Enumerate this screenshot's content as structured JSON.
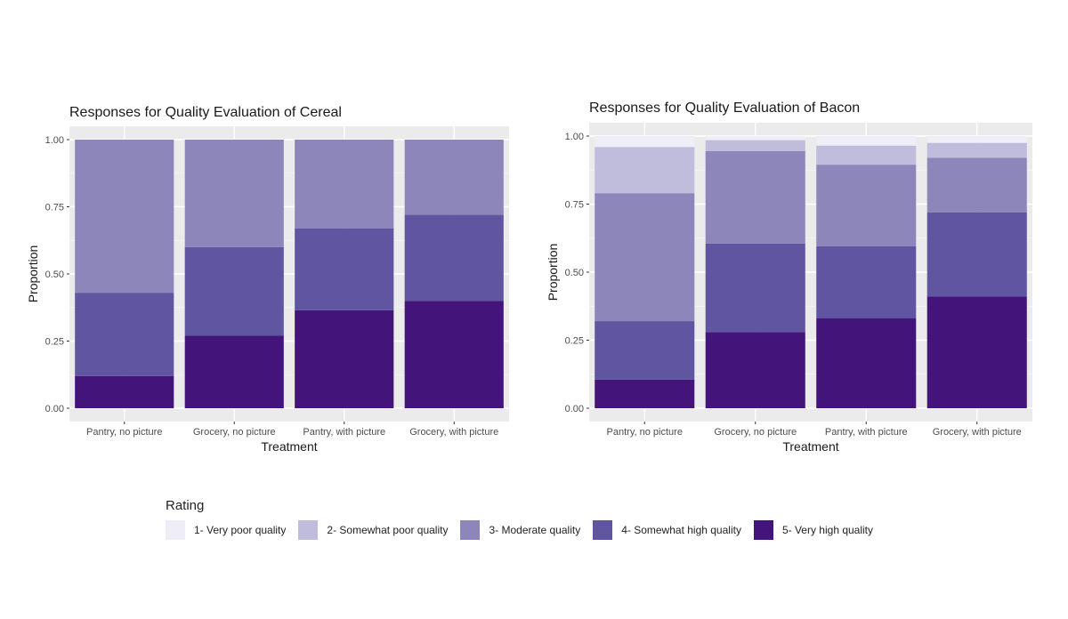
{
  "legend": {
    "title": "Rating",
    "items": [
      {
        "label": "1- Very poor quality",
        "color": "#efedf5"
      },
      {
        "label": "2- Somewhat poor quality",
        "color": "#bfbcdc"
      },
      {
        "label": "3- Moderate quality",
        "color": "#8c86bb"
      },
      {
        "label": "4- Somewhat high quality",
        "color": "#6055a0"
      },
      {
        "label": "5- Very high quality",
        "color": "#43157a"
      }
    ]
  },
  "chart_data": [
    {
      "type": "bar",
      "stacked": true,
      "title": "Responses for Quality Evaluation of Cereal",
      "xlabel": "Treatment",
      "ylabel": "Proportion",
      "ylim": [
        0,
        1
      ],
      "yticks": [
        "0.00",
        "0.25",
        "0.50",
        "0.75",
        "1.00"
      ],
      "grid": true,
      "legend": "bottom",
      "categories": [
        "Pantry, no picture",
        "Grocery, no picture",
        "Pantry, with picture",
        "Grocery, with picture"
      ],
      "series": [
        {
          "name": "1- Very poor quality",
          "values": [
            0,
            0,
            0,
            0
          ]
        },
        {
          "name": "2- Somewhat poor quality",
          "values": [
            0,
            0,
            0,
            0
          ]
        },
        {
          "name": "3- Moderate quality",
          "values": [
            0.57,
            0.4,
            0.33,
            0.28
          ]
        },
        {
          "name": "4- Somewhat high quality",
          "values": [
            0.31,
            0.33,
            0.305,
            0.32
          ]
        },
        {
          "name": "5- Very high quality",
          "values": [
            0.12,
            0.27,
            0.365,
            0.4
          ]
        }
      ]
    },
    {
      "type": "bar",
      "stacked": true,
      "title": "Responses for Quality Evaluation of Bacon",
      "xlabel": "Treatment",
      "ylabel": "Proportion",
      "ylim": [
        0,
        1
      ],
      "yticks": [
        "0.00",
        "0.25",
        "0.50",
        "0.75",
        "1.00"
      ],
      "grid": true,
      "legend": "bottom",
      "categories": [
        "Pantry, no picture",
        "Grocery, no picture",
        "Pantry, with picture",
        "Grocery, with picture"
      ],
      "series": [
        {
          "name": "1- Very poor quality",
          "values": [
            0.04,
            0.015,
            0.035,
            0.025
          ]
        },
        {
          "name": "2- Somewhat poor quality",
          "values": [
            0.17,
            0.04,
            0.07,
            0.055
          ]
        },
        {
          "name": "3- Moderate quality",
          "values": [
            0.47,
            0.34,
            0.3,
            0.2
          ]
        },
        {
          "name": "4- Somewhat high quality",
          "values": [
            0.215,
            0.325,
            0.265,
            0.31
          ]
        },
        {
          "name": "5- Very high quality",
          "values": [
            0.105,
            0.28,
            0.33,
            0.41
          ]
        }
      ]
    }
  ]
}
